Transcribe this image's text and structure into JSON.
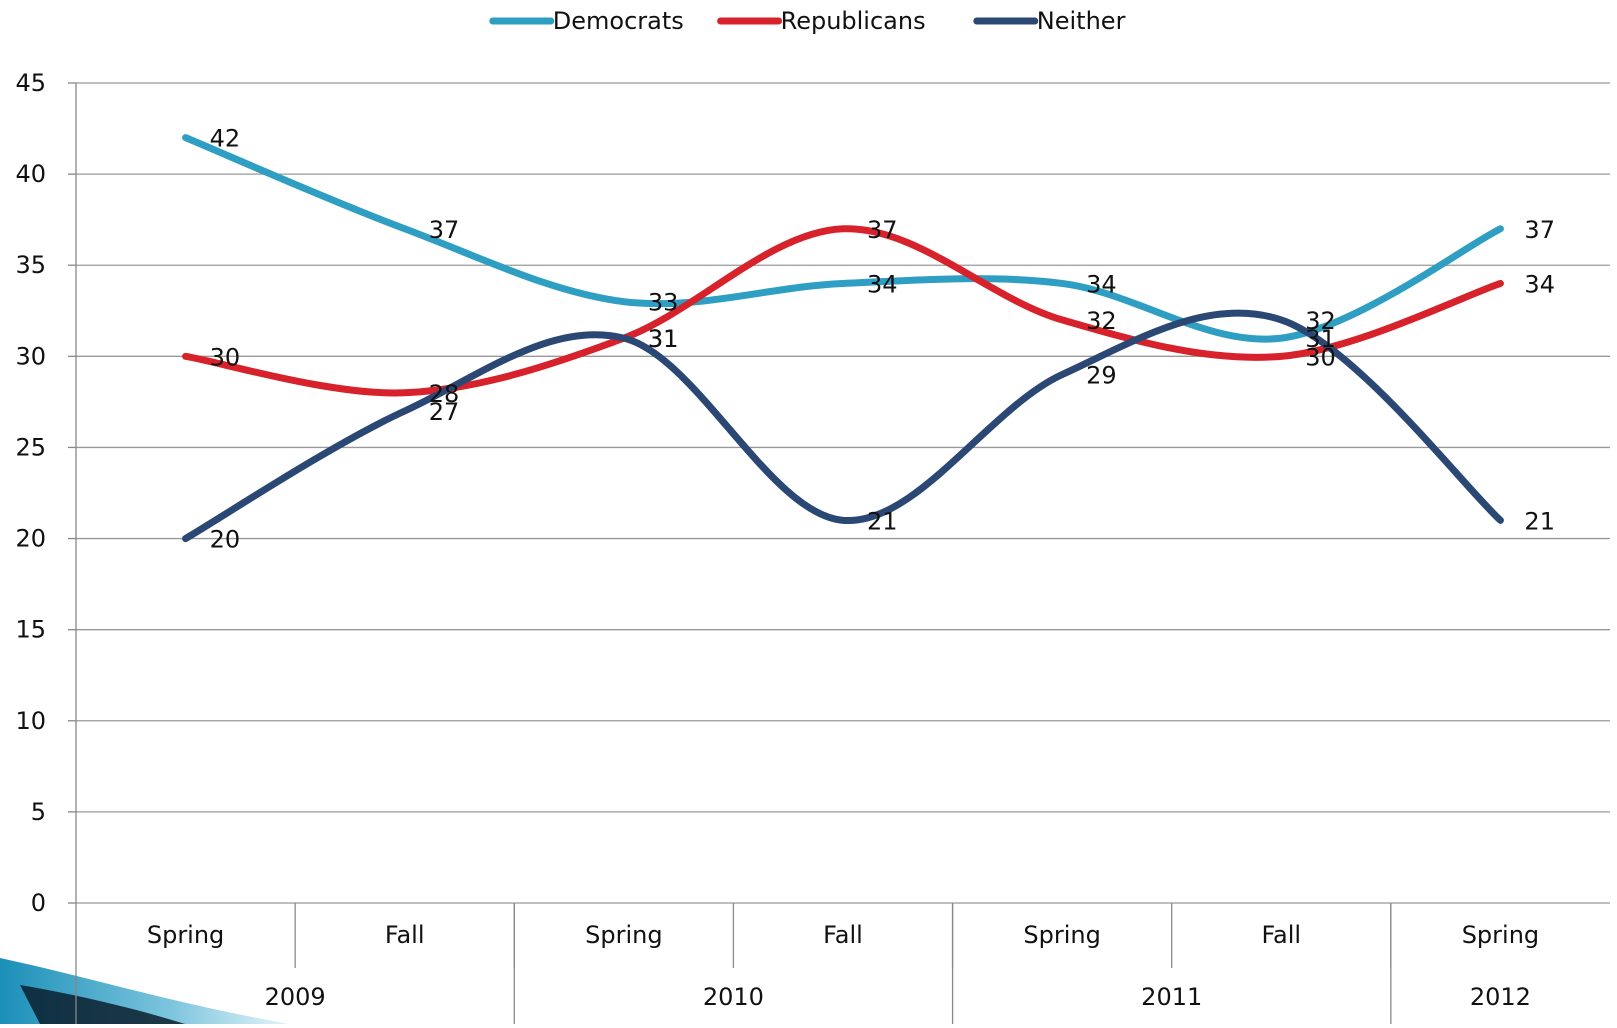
{
  "chart_data": {
    "type": "line",
    "title": "",
    "xlabel": "",
    "ylabel": "",
    "ylim": [
      0,
      45
    ],
    "yticks": [
      0,
      5,
      10,
      15,
      20,
      25,
      30,
      35,
      40,
      45
    ],
    "grid": true,
    "legend_position": "top-center",
    "categories": [
      "Spring",
      "Fall",
      "Spring",
      "Fall",
      "Spring",
      "Fall",
      "Spring"
    ],
    "category_groups": [
      {
        "label": "2009",
        "span": 2
      },
      {
        "label": "2010",
        "span": 2
      },
      {
        "label": "2011",
        "span": 2
      },
      {
        "label": "2012",
        "span": 1
      }
    ],
    "series": [
      {
        "name": "Democrats",
        "color": "#2E9EC2",
        "values": [
          42,
          37,
          33,
          34,
          34,
          31,
          37
        ]
      },
      {
        "name": "Republicans",
        "color": "#D7222B",
        "values": [
          30,
          28,
          31,
          37,
          32,
          30,
          34
        ]
      },
      {
        "name": "Neither",
        "color": "#2B4875",
        "values": [
          20,
          27,
          31,
          21,
          29,
          32,
          21
        ]
      }
    ],
    "data_labels": true
  },
  "colors": {
    "grid": "#999999",
    "axis": "#888888",
    "decoration": "#2E9EC2"
  }
}
